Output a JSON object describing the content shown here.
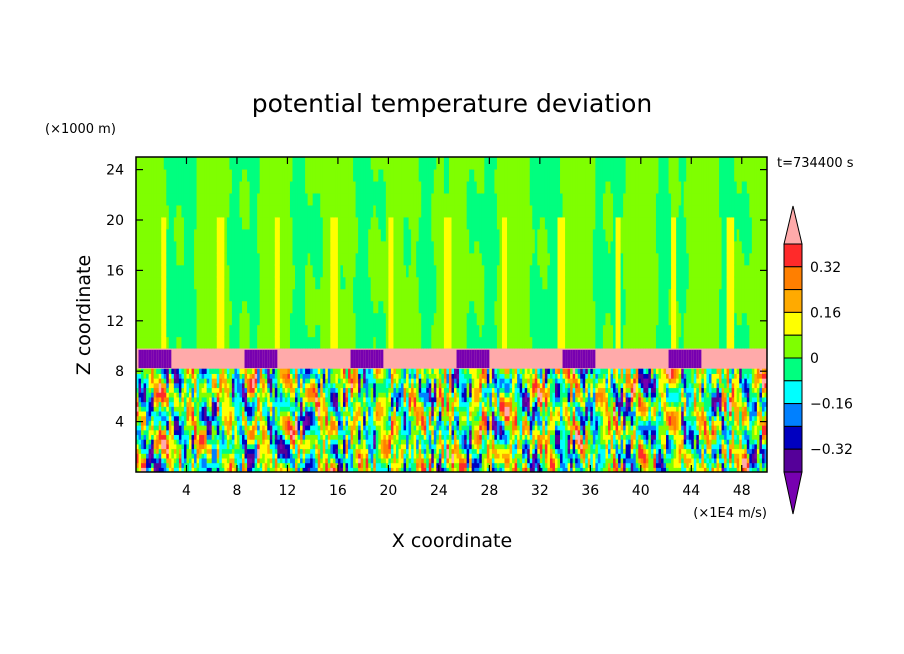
{
  "chart_data": {
    "type": "heatmap",
    "title": "potential temperature deviation",
    "xlabel": "X coordinate",
    "ylabel": "Z coordinate",
    "x_unit": "(×1E4 m/s)",
    "y_unit": "(×1000 m)",
    "time_label": "t=734400 s",
    "xlim": [
      0,
      50
    ],
    "ylim": [
      0,
      25
    ],
    "x_ticks": [
      4,
      8,
      12,
      16,
      20,
      24,
      28,
      32,
      36,
      40,
      44,
      48
    ],
    "y_ticks": [
      4,
      8,
      12,
      16,
      20,
      24
    ],
    "levels": [
      -0.4,
      -0.32,
      -0.24,
      -0.16,
      -0.08,
      0,
      0.08,
      0.16,
      0.24,
      0.32,
      0.4
    ],
    "colorbar_labels": [
      "0.32",
      "0.16",
      "0",
      "−0.16",
      "−0.32"
    ],
    "colorbar_label_values": [
      0.32,
      0.16,
      0,
      -0.16,
      -0.32
    ],
    "colorbar_colors": [
      "#ffaaaa",
      "#ff2a2a",
      "#ff7f00",
      "#ffaa00",
      "#ffff00",
      "#7fff00",
      "#00ff7f",
      "#00ffff",
      "#0080ff",
      "#0000c0",
      "#550099",
      "#7700b0"
    ]
  }
}
